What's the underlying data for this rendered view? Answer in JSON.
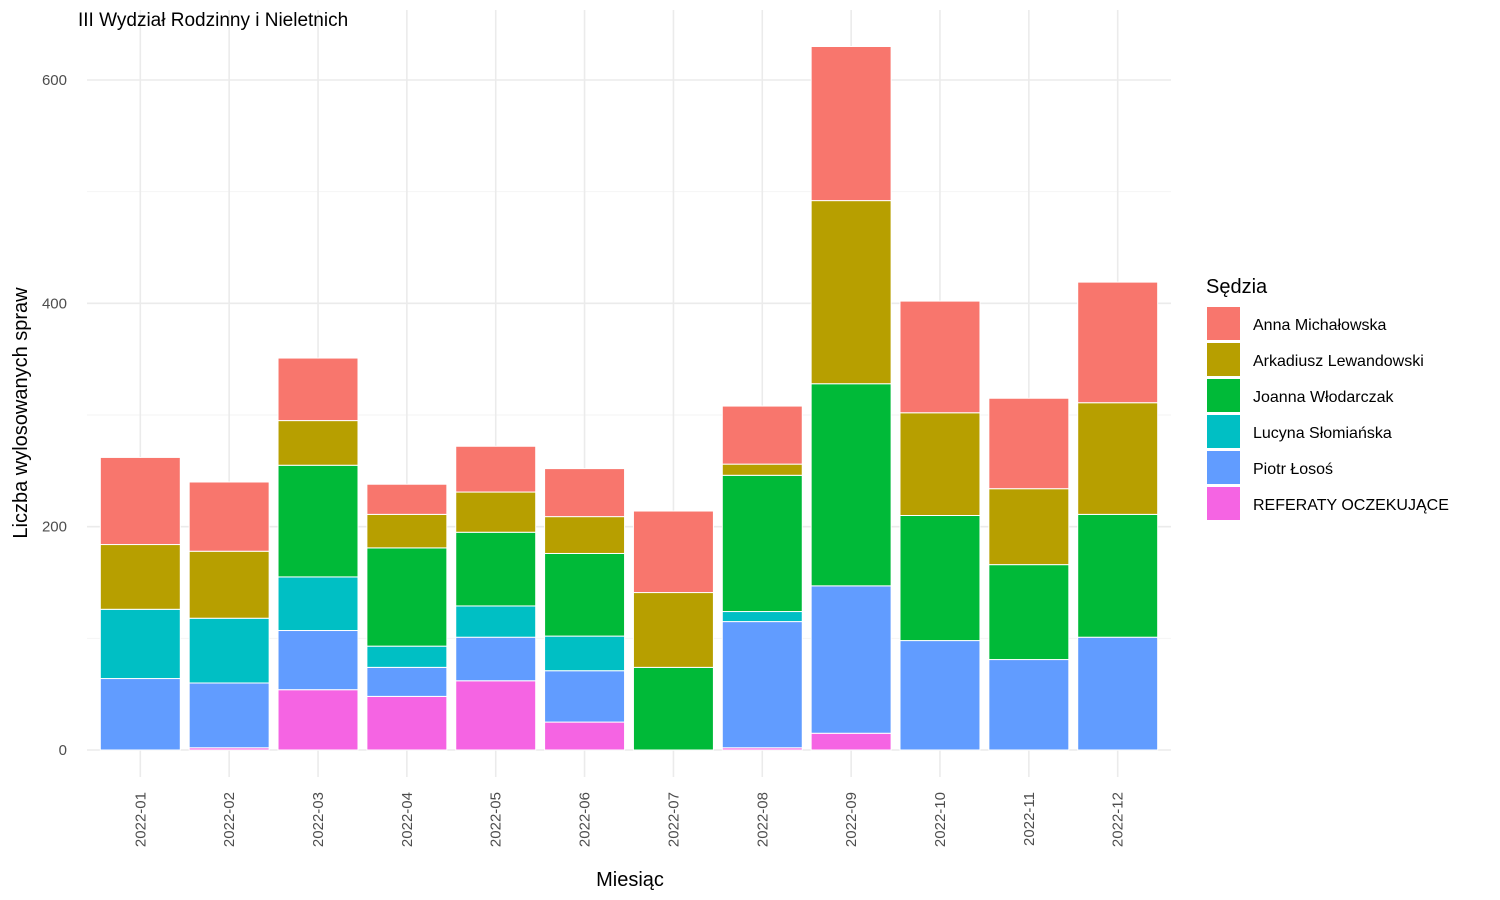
{
  "chart_data": {
    "type": "bar",
    "stacked": true,
    "title": "III Wydział Rodzinny i Nieletnich",
    "xlabel": "Miesiąc",
    "ylabel": "Liczba wylosowanych spraw",
    "ylim": [
      0,
      630
    ],
    "yticks": [
      0,
      200,
      400,
      600
    ],
    "grid": true,
    "legend_title": "Sędzia",
    "legend_position": "right",
    "categories": [
      "2022-01",
      "2022-02",
      "2022-03",
      "2022-04",
      "2022-05",
      "2022-06",
      "2022-07",
      "2022-08",
      "2022-09",
      "2022-10",
      "2022-11",
      "2022-12"
    ],
    "series": [
      {
        "name": "REFERATY OCZEKUJĄCE",
        "color": "#F564E3",
        "values": [
          0,
          2,
          54,
          48,
          62,
          25,
          0,
          2,
          15,
          0,
          0,
          0
        ]
      },
      {
        "name": "Piotr Łosoś",
        "color": "#619CFF",
        "values": [
          64,
          58,
          53,
          26,
          39,
          46,
          0,
          113,
          132,
          98,
          81,
          101
        ]
      },
      {
        "name": "Lucyna Słomiańska",
        "color": "#00BFC4",
        "values": [
          62,
          58,
          48,
          19,
          28,
          31,
          0,
          9,
          0,
          0,
          0,
          0
        ]
      },
      {
        "name": "Joanna Włodarczak",
        "color": "#00BA38",
        "values": [
          0,
          0,
          100,
          88,
          66,
          74,
          74,
          122,
          181,
          112,
          85,
          110
        ]
      },
      {
        "name": "Arkadiusz Lewandowski",
        "color": "#B79F00",
        "values": [
          58,
          60,
          40,
          30,
          36,
          33,
          67,
          10,
          164,
          92,
          68,
          100
        ]
      },
      {
        "name": "Anna Michałowska",
        "color": "#F8766D",
        "values": [
          78,
          62,
          56,
          27,
          41,
          43,
          73,
          52,
          138,
          100,
          81,
          108
        ]
      }
    ]
  }
}
